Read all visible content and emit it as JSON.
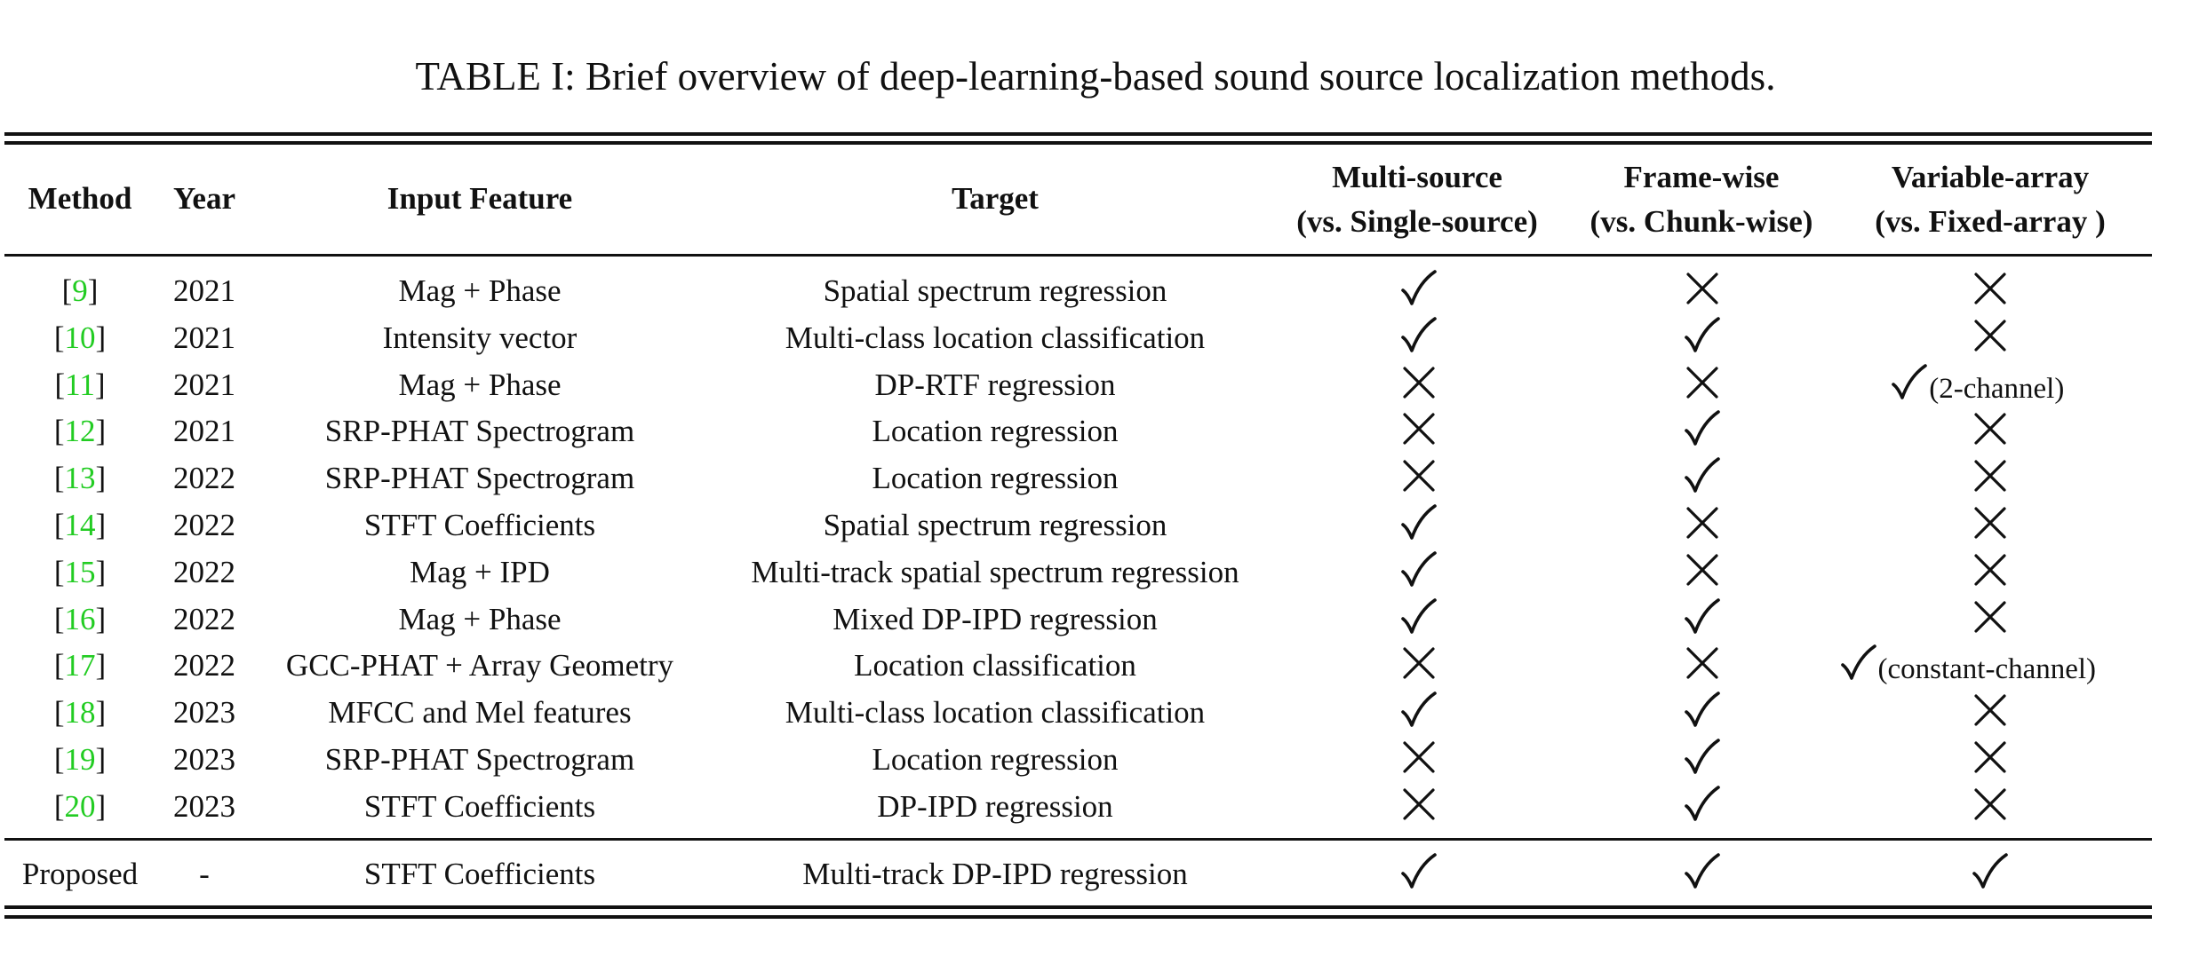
{
  "caption": "TABLE I: Brief overview of deep-learning-based sound source localization methods.",
  "headers": {
    "method": "Method",
    "year": "Year",
    "input": "Input Feature",
    "target": "Target",
    "multi_1": "Multi-source",
    "multi_2": "(vs. Single-source)",
    "frame_1": "Frame-wise",
    "frame_2": "(vs. Chunk-wise)",
    "var_1": "Variable-array",
    "var_2": "(vs. Fixed-array )"
  },
  "rows": [
    {
      "ref": "9",
      "year": "2021",
      "input": "Mag + Phase",
      "target": "Spatial spectrum regression",
      "multi": "yes",
      "frame": "no",
      "var": "no",
      "var_note": ""
    },
    {
      "ref": "10",
      "year": "2021",
      "input": "Intensity vector",
      "target": "Multi-class location classification",
      "multi": "yes",
      "frame": "yes",
      "var": "no",
      "var_note": ""
    },
    {
      "ref": "11",
      "year": "2021",
      "input": "Mag + Phase",
      "target": "DP-RTF regression",
      "multi": "no",
      "frame": "no",
      "var": "yes",
      "var_note": "(2-channel)"
    },
    {
      "ref": "12",
      "year": "2021",
      "input": "SRP-PHAT Spectrogram",
      "target": "Location regression",
      "multi": "no",
      "frame": "yes",
      "var": "no",
      "var_note": ""
    },
    {
      "ref": "13",
      "year": "2022",
      "input": "SRP-PHAT Spectrogram",
      "target": "Location regression",
      "multi": "no",
      "frame": "yes",
      "var": "no",
      "var_note": ""
    },
    {
      "ref": "14",
      "year": "2022",
      "input": "STFT Coefficients",
      "target": "Spatial spectrum regression",
      "multi": "yes",
      "frame": "no",
      "var": "no",
      "var_note": ""
    },
    {
      "ref": "15",
      "year": "2022",
      "input": "Mag + IPD",
      "target": "Multi-track spatial spectrum regression",
      "multi": "yes",
      "frame": "no",
      "var": "no",
      "var_note": ""
    },
    {
      "ref": "16",
      "year": "2022",
      "input": "Mag + Phase",
      "target": "Mixed DP-IPD regression",
      "multi": "yes",
      "frame": "yes",
      "var": "no",
      "var_note": ""
    },
    {
      "ref": "17",
      "year": "2022",
      "input": "GCC-PHAT + Array Geometry",
      "target": "Location classification",
      "multi": "no",
      "frame": "no",
      "var": "yes",
      "var_note": "(constant-channel)"
    },
    {
      "ref": "18",
      "year": "2023",
      "input": "MFCC and Mel features",
      "target": "Multi-class location classification",
      "multi": "yes",
      "frame": "yes",
      "var": "no",
      "var_note": ""
    },
    {
      "ref": "19",
      "year": "2023",
      "input": "SRP-PHAT Spectrogram",
      "target": "Location regression",
      "multi": "no",
      "frame": "yes",
      "var": "no",
      "var_note": ""
    },
    {
      "ref": "20",
      "year": "2023",
      "input": "STFT Coefficients",
      "target": "DP-IPD regression",
      "multi": "no",
      "frame": "yes",
      "var": "no",
      "var_note": ""
    }
  ],
  "proposed": {
    "method": "Proposed",
    "year": "-",
    "input": "STFT Coefficients",
    "target": "Multi-track DP-IPD regression",
    "multi": "yes",
    "frame": "yes",
    "var": "yes",
    "var_note": ""
  },
  "colors": {
    "reference": "#22cc22",
    "text": "#111111"
  }
}
